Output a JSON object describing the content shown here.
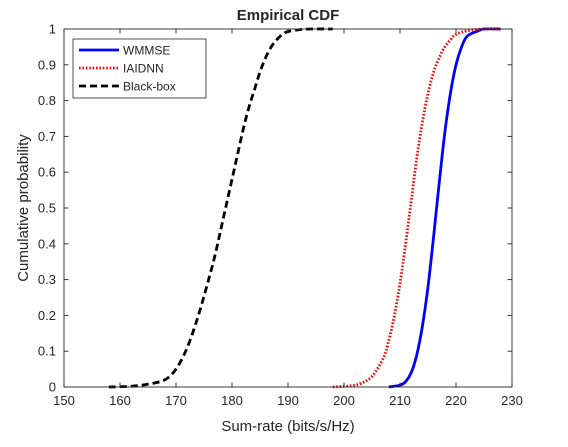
{
  "chart_data": {
    "type": "line",
    "title": "Empirical CDF",
    "xlabel": "Sum-rate (bits/s/Hz)",
    "ylabel": "Cumulative probability",
    "xlim": [
      150,
      230
    ],
    "ylim": [
      0,
      1
    ],
    "x_ticks": [
      150,
      160,
      170,
      180,
      190,
      200,
      210,
      220,
      230
    ],
    "y_ticks": [
      0,
      0.1,
      0.2,
      0.3,
      0.4,
      0.5,
      0.6,
      0.7,
      0.8,
      0.9,
      1
    ],
    "y_tick_labels": [
      "0",
      "0.1",
      "0.2",
      "0.3",
      "0.4",
      "0.5",
      "0.6",
      "0.7",
      "0.8",
      "0.9",
      "1"
    ],
    "grid": false,
    "legend_position": "top-left",
    "series": [
      {
        "name": "WMMSE",
        "color": "#0000ff",
        "style": "solid",
        "points": [
          [
            208,
            0
          ],
          [
            210,
            0.005
          ],
          [
            211,
            0.015
          ],
          [
            212,
            0.04
          ],
          [
            213,
            0.09
          ],
          [
            214,
            0.17
          ],
          [
            215,
            0.28
          ],
          [
            216,
            0.42
          ],
          [
            217,
            0.57
          ],
          [
            218,
            0.71
          ],
          [
            219,
            0.82
          ],
          [
            220,
            0.9
          ],
          [
            221,
            0.95
          ],
          [
            222,
            0.98
          ],
          [
            224,
            0.995
          ],
          [
            225,
            1
          ],
          [
            228,
            1
          ]
        ]
      },
      {
        "name": "IAIDNN",
        "color": "#ff0000",
        "style": "dotted",
        "points": [
          [
            198,
            0
          ],
          [
            201,
            0.003
          ],
          [
            203,
            0.01
          ],
          [
            205,
            0.03
          ],
          [
            207,
            0.08
          ],
          [
            208,
            0.13
          ],
          [
            209,
            0.2
          ],
          [
            210,
            0.29
          ],
          [
            211,
            0.4
          ],
          [
            212,
            0.52
          ],
          [
            213,
            0.64
          ],
          [
            214,
            0.74
          ],
          [
            215,
            0.82
          ],
          [
            216,
            0.88
          ],
          [
            217,
            0.92
          ],
          [
            218,
            0.95
          ],
          [
            219,
            0.97
          ],
          [
            220,
            0.985
          ],
          [
            222,
            0.995
          ],
          [
            225,
            1
          ],
          [
            228,
            1
          ]
        ]
      },
      {
        "name": "Black-box",
        "color": "#000000",
        "style": "dashed",
        "points": [
          [
            158,
            0
          ],
          [
            162,
            0.002
          ],
          [
            165,
            0.008
          ],
          [
            168,
            0.02
          ],
          [
            170,
            0.05
          ],
          [
            172,
            0.11
          ],
          [
            174,
            0.2
          ],
          [
            176,
            0.31
          ],
          [
            177,
            0.37
          ],
          [
            178,
            0.44
          ],
          [
            179,
            0.51
          ],
          [
            180,
            0.58
          ],
          [
            181,
            0.65
          ],
          [
            182,
            0.72
          ],
          [
            183,
            0.78
          ],
          [
            184,
            0.83
          ],
          [
            185,
            0.88
          ],
          [
            186,
            0.92
          ],
          [
            187,
            0.95
          ],
          [
            188,
            0.97
          ],
          [
            189,
            0.985
          ],
          [
            190,
            0.993
          ],
          [
            192,
            0.998
          ],
          [
            194,
            1
          ],
          [
            198,
            1
          ]
        ]
      }
    ]
  }
}
